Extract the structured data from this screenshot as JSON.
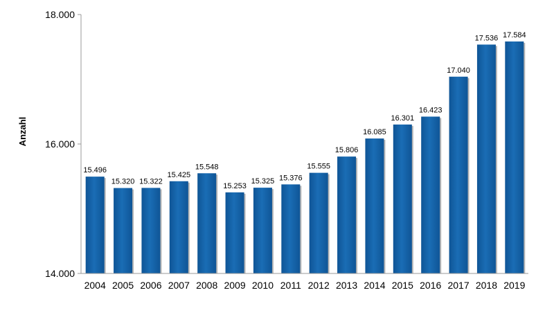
{
  "chart_data": {
    "type": "bar",
    "ylabel": "Anzahl",
    "xlabel": "",
    "ylim": [
      14000,
      18000
    ],
    "yticks": [
      14000,
      16000,
      18000
    ],
    "ytick_labels": [
      "14.000",
      "16.000",
      "18.000"
    ],
    "categories": [
      "2004",
      "2005",
      "2006",
      "2007",
      "2008",
      "2009",
      "2010",
      "2011",
      "2012",
      "2013",
      "2014",
      "2015",
      "2016",
      "2017",
      "2018",
      "2019"
    ],
    "values": [
      15496,
      15320,
      15322,
      15425,
      15548,
      15253,
      15325,
      15376,
      15555,
      15806,
      16085,
      16301,
      16423,
      17040,
      17536,
      17584
    ],
    "value_labels": [
      "15.496",
      "15.320",
      "15.322",
      "15.425",
      "15.548",
      "15.253",
      "15.325",
      "15.376",
      "15.555",
      "15.806",
      "16.085",
      "16.301",
      "16.423",
      "17.040",
      "17.536",
      "17.584"
    ],
    "bar_color": "#1565A8",
    "grid": false,
    "legend": "none"
  }
}
